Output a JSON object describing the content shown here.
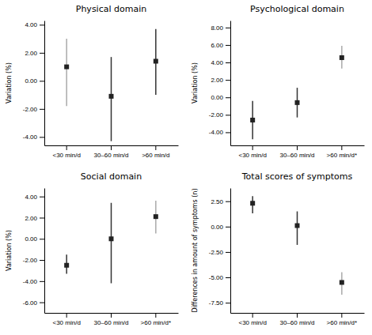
{
  "chart_data": [
    {
      "type": "errorbar",
      "title": "Physical domain",
      "ylabel": "Variation (%)",
      "categories": [
        "<30 min/d",
        "30–60 min/d",
        ">60 min/d"
      ],
      "values": [
        1.0,
        -1.1,
        1.4
      ],
      "ci_low": [
        -1.8,
        -4.3,
        -1.0
      ],
      "ci_high": [
        3.0,
        1.7,
        3.7
      ],
      "color": "#222222",
      "colors": [
        "#aaaaaa",
        "#333333",
        "#333333"
      ],
      "marker": "square",
      "ylim": [
        -4.6,
        4.3
      ],
      "yticks": [
        {
          "value": -4.0,
          "label": "-4.00"
        },
        {
          "value": -2.0,
          "label": "-2.00"
        },
        {
          "value": 0.0,
          "label": "0.00"
        },
        {
          "value": 2.0,
          "label": "2.00"
        },
        {
          "value": 4.0,
          "label": "4.00"
        }
      ],
      "grid": false
    },
    {
      "type": "errorbar",
      "title": "Psychological domain",
      "ylabel": "Variation (%)",
      "categories": [
        "<30 min/d",
        "30–60 min/d",
        ">60 min/d*"
      ],
      "values": [
        -2.6,
        -0.6,
        4.55
      ],
      "ci_low": [
        -4.8,
        -2.3,
        3.3
      ],
      "ci_high": [
        -0.4,
        1.1,
        5.9
      ],
      "color": "#222222",
      "colors": [
        "#333333",
        "#333333",
        "#aaaaaa"
      ],
      "marker": "square",
      "ylim": [
        -5.5,
        8.8
      ],
      "yticks": [
        {
          "value": -4.0,
          "label": "-4.00"
        },
        {
          "value": -2.0,
          "label": "-2.00"
        },
        {
          "value": 0.0,
          "label": "0.00"
        },
        {
          "value": 2.0,
          "label": "2.00"
        },
        {
          "value": 4.0,
          "label": "4.00"
        },
        {
          "value": 6.0,
          "label": "6.00"
        },
        {
          "value": 8.0,
          "label": "8.00"
        }
      ],
      "grid": false
    },
    {
      "type": "errorbar",
      "title": "Social domain",
      "ylabel": "Variation (%)",
      "categories": [
        "<30 min/d",
        "30–60 min/d",
        ">60 min/d*"
      ],
      "values": [
        -2.5,
        0.0,
        2.1
      ],
      "ci_low": [
        -3.3,
        -4.2,
        0.5
      ],
      "ci_high": [
        -1.5,
        3.4,
        3.6
      ],
      "color": "#222222",
      "colors": [
        "#333333",
        "#333333",
        "#aaaaaa"
      ],
      "marker": "square",
      "ylim": [
        -7.0,
        4.8
      ],
      "yticks": [
        {
          "value": -6.0,
          "label": "-6.00"
        },
        {
          "value": -4.0,
          "label": "-4.00"
        },
        {
          "value": -2.0,
          "label": "-2.00"
        },
        {
          "value": 0.0,
          "label": "0.00"
        },
        {
          "value": 2.0,
          "label": "2.00"
        },
        {
          "value": 4.0,
          "label": "4.00"
        }
      ],
      "grid": false
    },
    {
      "type": "errorbar",
      "title": "Total scores of symptoms",
      "ylabel": "Differences in amount of symptoms (n)",
      "categories": [
        "<30 min/d",
        "30–60 min/d",
        ">60 min/d*"
      ],
      "values": [
        2.3,
        0.1,
        -5.5
      ],
      "ci_low": [
        1.3,
        -1.8,
        -6.7
      ],
      "ci_high": [
        3.0,
        1.5,
        -4.5
      ],
      "color": "#222222",
      "colors": [
        "#333333",
        "#333333",
        "#aaaaaa"
      ],
      "marker": "square",
      "ylim": [
        -8.5,
        3.8
      ],
      "yticks": [
        {
          "value": -7.5,
          "label": "-7.50"
        },
        {
          "value": -5.0,
          "label": "-5.00"
        },
        {
          "value": -2.5,
          "label": "-2.50"
        },
        {
          "value": 0.0,
          "label": "0.00"
        },
        {
          "value": 2.5,
          "label": "2.50"
        }
      ],
      "grid": false
    }
  ]
}
